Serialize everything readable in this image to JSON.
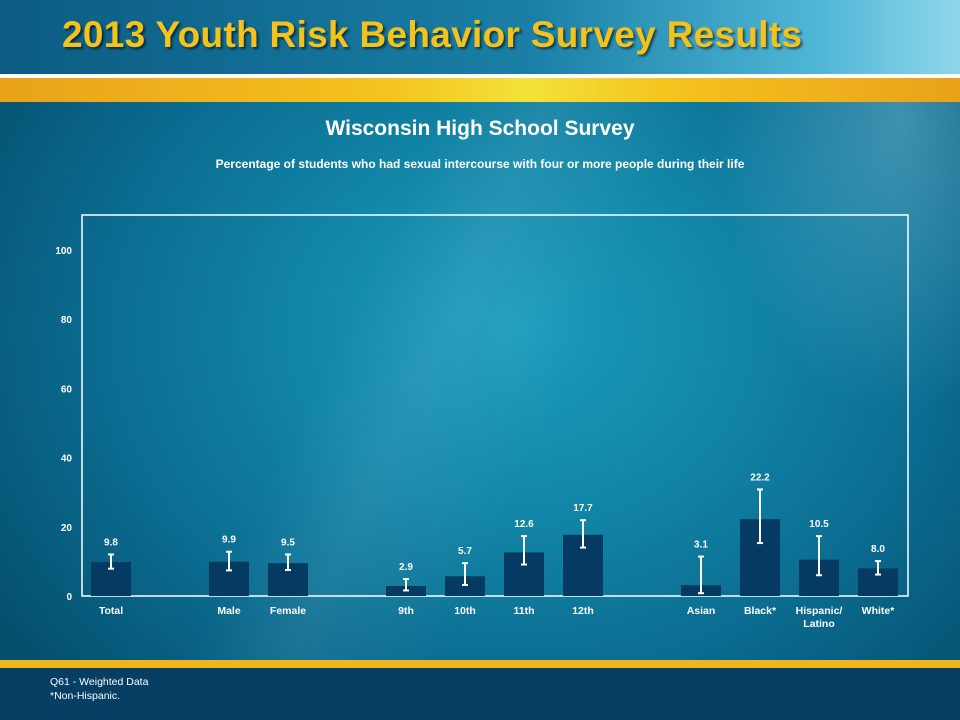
{
  "header": {
    "title": "2013 Youth Risk Behavior Survey Results"
  },
  "footer": {
    "note1": "Q61 - Weighted Data",
    "note2": "*Non-Hispanic."
  },
  "colors": {
    "bar": "#053a63",
    "gold": "#f3c21c",
    "text": "#ffffff"
  },
  "chart_data": {
    "type": "bar",
    "title": "Wisconsin High School Survey",
    "subtitle": "Percentage of students who had sexual intercourse with four or more people during their life",
    "ylim": [
      0,
      110
    ],
    "yticks": [
      "0",
      "20",
      "40",
      "60",
      "80",
      "100"
    ],
    "grid": false,
    "categories": [
      "Total",
      "Male",
      "Female",
      "9th",
      "10th",
      "11th",
      "12th",
      "Asian",
      "Black*",
      "Hispanic/\nLatino",
      "White*"
    ],
    "values": [
      9.8,
      9.9,
      9.5,
      2.9,
      5.7,
      12.6,
      17.7,
      3.1,
      22.2,
      10.5,
      8.0
    ],
    "value_labels": [
      "9.8",
      "9.9",
      "9.5",
      "2.9",
      "5.7",
      "12.6",
      "17.7",
      "3.1",
      "22.2",
      "10.5",
      "8.0"
    ],
    "ci_low": [
      7.9,
      7.4,
      7.5,
      1.6,
      3.2,
      9.1,
      14.0,
      0.8,
      15.3,
      6.0,
      6.2
    ],
    "ci_high": [
      12.0,
      12.8,
      12.0,
      4.9,
      9.5,
      17.3,
      21.9,
      11.4,
      30.8,
      17.3,
      10.1
    ]
  }
}
